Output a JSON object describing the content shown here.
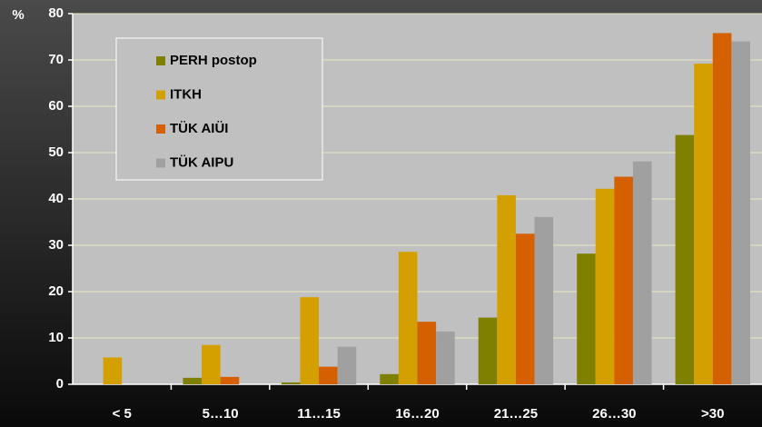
{
  "chart_data": {
    "type": "bar",
    "y_label": "%",
    "categories": [
      "< 5",
      "5…10",
      "11…15",
      "16…20",
      "21…25",
      "26…30",
      ">30"
    ],
    "series": [
      {
        "name": "PERH postop",
        "color": "#808000",
        "values": [
          0,
          1.4,
          0.4,
          2.2,
          14.4,
          28.2,
          53.8
        ]
      },
      {
        "name": "ITKH",
        "color": "#d4a000",
        "values": [
          5.8,
          8.5,
          18.8,
          28.6,
          40.8,
          42.2,
          69.2
        ]
      },
      {
        "name": "TÜK AIÜI",
        "color": "#d46000",
        "values": [
          0,
          1.6,
          3.8,
          13.5,
          32.5,
          44.8,
          75.8
        ]
      },
      {
        "name": "TÜK AIPU",
        "color": "#a0a0a0",
        "values": [
          0,
          0,
          8.1,
          11.4,
          36.1,
          48.1,
          74.0
        ]
      }
    ],
    "ylim": [
      0,
      80
    ],
    "yticks": [
      0,
      10,
      20,
      30,
      40,
      50,
      60,
      70,
      80
    ],
    "grid": true,
    "legend": "upper left"
  }
}
